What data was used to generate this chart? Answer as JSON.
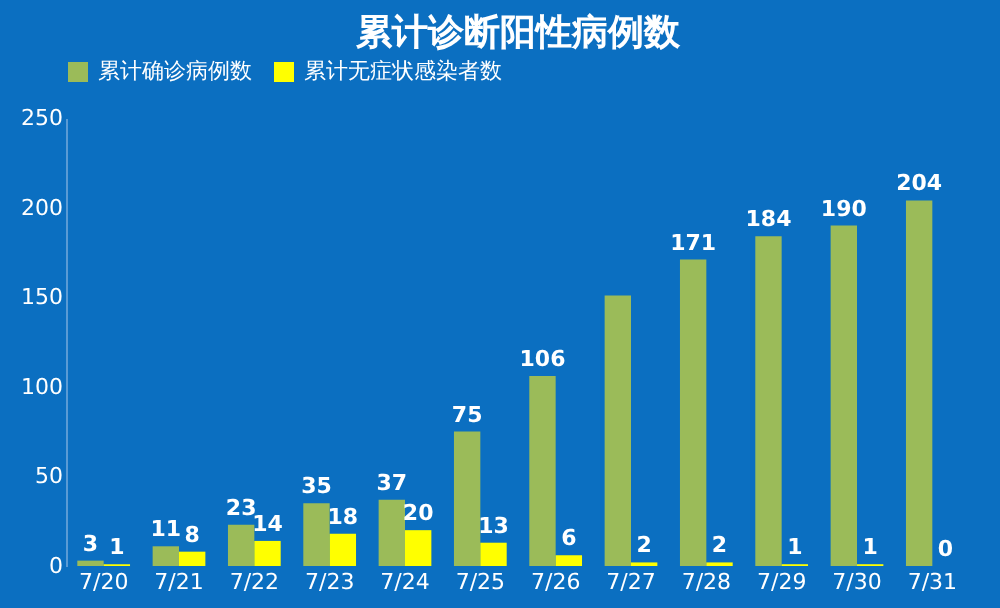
{
  "chart_data": {
    "type": "bar",
    "title": "累计诊断阳性病例数",
    "categories": [
      "7/20",
      "7/21",
      "7/22",
      "7/23",
      "7/24",
      "7/25",
      "7/26",
      "7/27",
      "7/28",
      "7/29",
      "7/30",
      "7/31"
    ],
    "series": [
      {
        "name": "累计确诊病例数",
        "color": "#9bbb59",
        "values": [
          3,
          11,
          23,
          35,
          37,
          75,
          106,
          151,
          171,
          184,
          190,
          204
        ],
        "value_labels": [
          "3",
          "11",
          "23",
          "35",
          "37",
          "75",
          "106",
          null,
          "171",
          "184",
          "190",
          "204"
        ]
      },
      {
        "name": "累计无症状感染者数",
        "color": "#ffff00",
        "values": [
          1,
          8,
          14,
          18,
          20,
          13,
          6,
          2,
          2,
          1,
          1,
          0
        ],
        "value_labels": [
          "1",
          "8",
          "14",
          "18",
          "20",
          "13",
          "6",
          "2",
          "2",
          "1",
          "1",
          "0"
        ]
      }
    ],
    "ylim": [
      0,
      250
    ],
    "yticks": [
      0,
      50,
      100,
      150,
      200,
      250
    ],
    "grid": false,
    "legend": "top"
  }
}
